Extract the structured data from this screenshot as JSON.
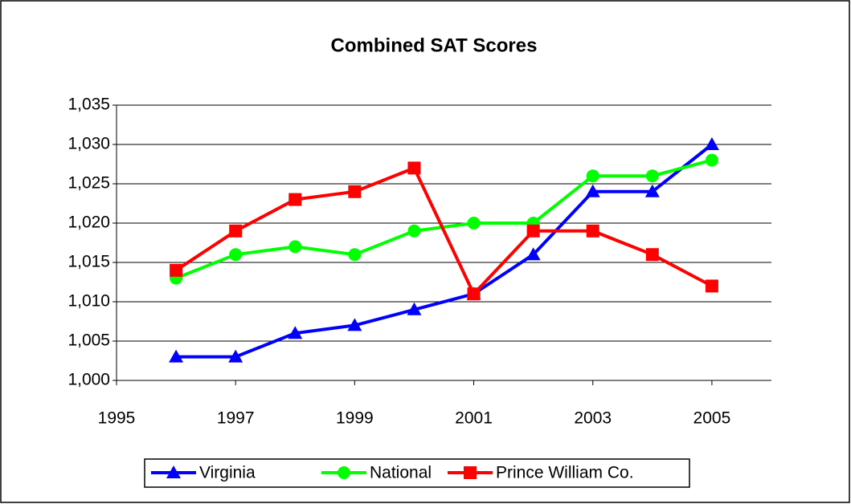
{
  "chart_data": {
    "type": "line",
    "title": "Combined SAT Scores",
    "x": [
      1996,
      1997,
      1998,
      1999,
      2000,
      2001,
      2002,
      2003,
      2004,
      2005
    ],
    "series": [
      {
        "name": "Virginia",
        "color": "#0000ff",
        "marker": "triangle",
        "values": [
          1003,
          1003,
          1006,
          1007,
          1009,
          1011,
          1016,
          1024,
          1024,
          1030
        ]
      },
      {
        "name": "National",
        "color": "#00ff00",
        "marker": "circle",
        "values": [
          1013,
          1016,
          1017,
          1016,
          1019,
          1020,
          1020,
          1026,
          1026,
          1028
        ]
      },
      {
        "name": "Prince William Co.",
        "color": "#ff0000",
        "marker": "square",
        "values": [
          1014,
          1019,
          1023,
          1024,
          1027,
          1011,
          1019,
          1019,
          1016,
          1012
        ]
      }
    ],
    "xlim": [
      1995,
      2006
    ],
    "xticks": [
      1995,
      1997,
      1999,
      2001,
      2003,
      2005
    ],
    "ylim": [
      1000,
      1035
    ],
    "yticks": [
      {
        "value": 1000,
        "label": "1,000"
      },
      {
        "value": 1005,
        "label": "1,005"
      },
      {
        "value": 1010,
        "label": "1,010"
      },
      {
        "value": 1015,
        "label": "1,015"
      },
      {
        "value": 1020,
        "label": "1,020"
      },
      {
        "value": 1025,
        "label": "1,025"
      },
      {
        "value": 1030,
        "label": "1,030"
      },
      {
        "value": 1035,
        "label": "1,035"
      }
    ],
    "grid": true,
    "legend": "bottom"
  }
}
